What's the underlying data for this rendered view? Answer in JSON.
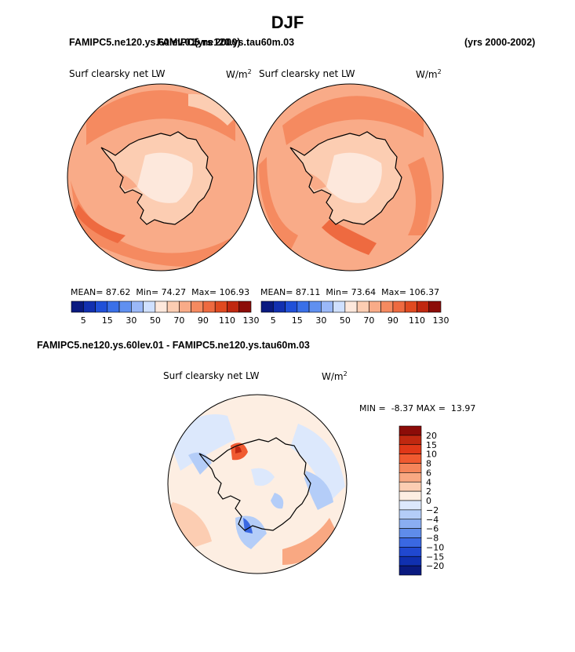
{
  "header": {
    "season": "DJF",
    "run_top_left": "FAMIPC5.ne120.ys.60lev.01",
    "run_top_overlap": "FAMIPC5.ne120.ys.tau60m.03",
    "run_top_years_overlap": "(yrs 2000)",
    "years_right": "(yrs 2000-2002)",
    "diff_title": "FAMIPC5.ne120.ys.60lev.01 - FAMIPC5.ne120.ys.tau60m.03"
  },
  "chart_data": [
    {
      "type": "map",
      "projection": "south-polar-stereographic",
      "title": "Surf clearsky net LW",
      "units": "W/m",
      "units_superscript": "2",
      "stats": {
        "mean_label": "MEAN=",
        "mean": "87.62",
        "min_label": "Min=",
        "min": "74.27",
        "max_label": "Max=",
        "max": "106.93"
      },
      "colorbar": {
        "orientation": "horizontal",
        "colors": [
          "#0a1a80",
          "#1230b0",
          "#2050d8",
          "#3a70e8",
          "#6090f0",
          "#9ab8f8",
          "#cfe0ff",
          "#fde8dc",
          "#fccdb2",
          "#f9ab88",
          "#f58a60",
          "#ee6a40",
          "#e04a20",
          "#c02810",
          "#8c0c08"
        ],
        "labels": [
          "5",
          "15",
          "30",
          "50",
          "70",
          "90",
          "110",
          "130"
        ]
      }
    },
    {
      "type": "map",
      "projection": "south-polar-stereographic",
      "title": "Surf clearsky net LW",
      "units": "W/m",
      "units_superscript": "2",
      "stats": {
        "mean_label": "MEAN=",
        "mean": "87.11",
        "min_label": "Min=",
        "min": "73.64",
        "max_label": "Max=",
        "max": "106.37"
      },
      "colorbar": {
        "orientation": "horizontal",
        "colors": [
          "#0a1a80",
          "#1230b0",
          "#2050d8",
          "#3a70e8",
          "#6090f0",
          "#9ab8f8",
          "#cfe0ff",
          "#fde8dc",
          "#fccdb2",
          "#f9ab88",
          "#f58a60",
          "#ee6a40",
          "#e04a20",
          "#c02810",
          "#8c0c08"
        ],
        "labels": [
          "5",
          "15",
          "30",
          "50",
          "70",
          "90",
          "110",
          "130"
        ]
      }
    },
    {
      "type": "map",
      "projection": "south-polar-stereographic",
      "title": "Surf clearsky net LW",
      "units": "W/m",
      "units_superscript": "2",
      "stats": {
        "min_label": "MIN =",
        "min": "-8.37",
        "max_label": "MAX =",
        "max": "13.97"
      },
      "colorbar": {
        "orientation": "vertical",
        "colors": [
          "#8c0c08",
          "#c02810",
          "#e03818",
          "#f05a30",
          "#f5855a",
          "#f9a882",
          "#fccdb2",
          "#fdeee2",
          "#dce8fc",
          "#b4cdf8",
          "#8aaef2",
          "#5f8cea",
          "#3a68e2",
          "#2048d0",
          "#1030b0",
          "#0a1a80"
        ],
        "labels": [
          "20",
          "15",
          "10",
          "8",
          "6",
          "4",
          "2",
          "0",
          "−2",
          "−4",
          "−6",
          "−8",
          "−10",
          "−15",
          "−20"
        ]
      }
    }
  ]
}
